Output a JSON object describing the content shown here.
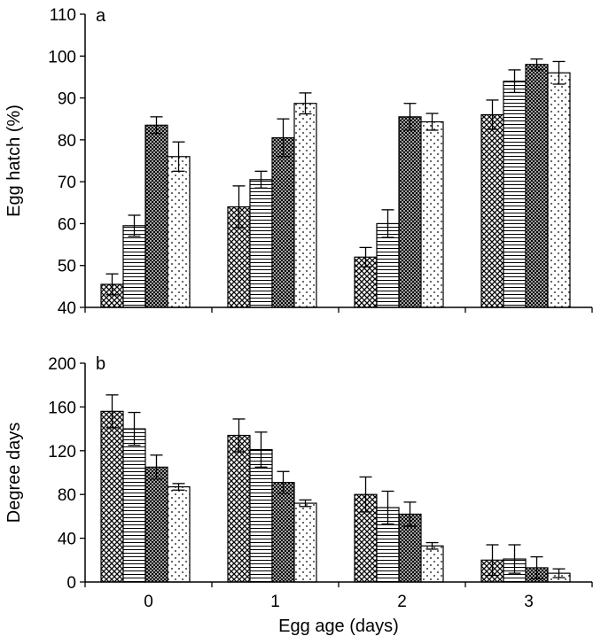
{
  "chart_data": [
    {
      "type": "bar",
      "panel_label": "a",
      "ylabel": "Egg hatch (%)",
      "xlabel": "",
      "ylim": [
        40,
        110
      ],
      "yticks": [
        40,
        50,
        60,
        70,
        80,
        90,
        100,
        110
      ],
      "categories": [
        "0",
        "1",
        "2",
        "3"
      ],
      "series": [
        {
          "pattern": "crosshatch",
          "values": [
            45.5,
            64,
            52,
            86
          ],
          "errors": [
            2.5,
            5,
            2.3,
            3.5
          ]
        },
        {
          "pattern": "horizontal-lines",
          "values": [
            59.5,
            70.5,
            60,
            94
          ],
          "errors": [
            2.5,
            2,
            3.3,
            2.7
          ]
        },
        {
          "pattern": "dense-crosshatch",
          "values": [
            83.5,
            80.5,
            85.5,
            98
          ],
          "errors": [
            2,
            4.5,
            3.2,
            1.3
          ]
        },
        {
          "pattern": "dots",
          "values": [
            76,
            88.7,
            84.3,
            96
          ],
          "errors": [
            3.5,
            2.5,
            2,
            2.7
          ]
        }
      ]
    },
    {
      "type": "bar",
      "panel_label": "b",
      "ylabel": "Degree days",
      "xlabel": "Egg age (days)",
      "ylim": [
        0,
        200
      ],
      "yticks": [
        0,
        40,
        80,
        120,
        160,
        200
      ],
      "categories": [
        "0",
        "1",
        "2",
        "3"
      ],
      "series": [
        {
          "pattern": "crosshatch",
          "values": [
            156,
            134,
            80,
            20
          ],
          "errors": [
            15,
            15,
            16,
            14
          ]
        },
        {
          "pattern": "horizontal-lines",
          "values": [
            140,
            121,
            68,
            21
          ],
          "errors": [
            15,
            16,
            15,
            13
          ]
        },
        {
          "pattern": "dense-crosshatch",
          "values": [
            105,
            91,
            62,
            13
          ],
          "errors": [
            11,
            10,
            11,
            10
          ]
        },
        {
          "pattern": "dots",
          "values": [
            87,
            72,
            33,
            8
          ],
          "errors": [
            3,
            3,
            3,
            4
          ]
        }
      ]
    }
  ]
}
